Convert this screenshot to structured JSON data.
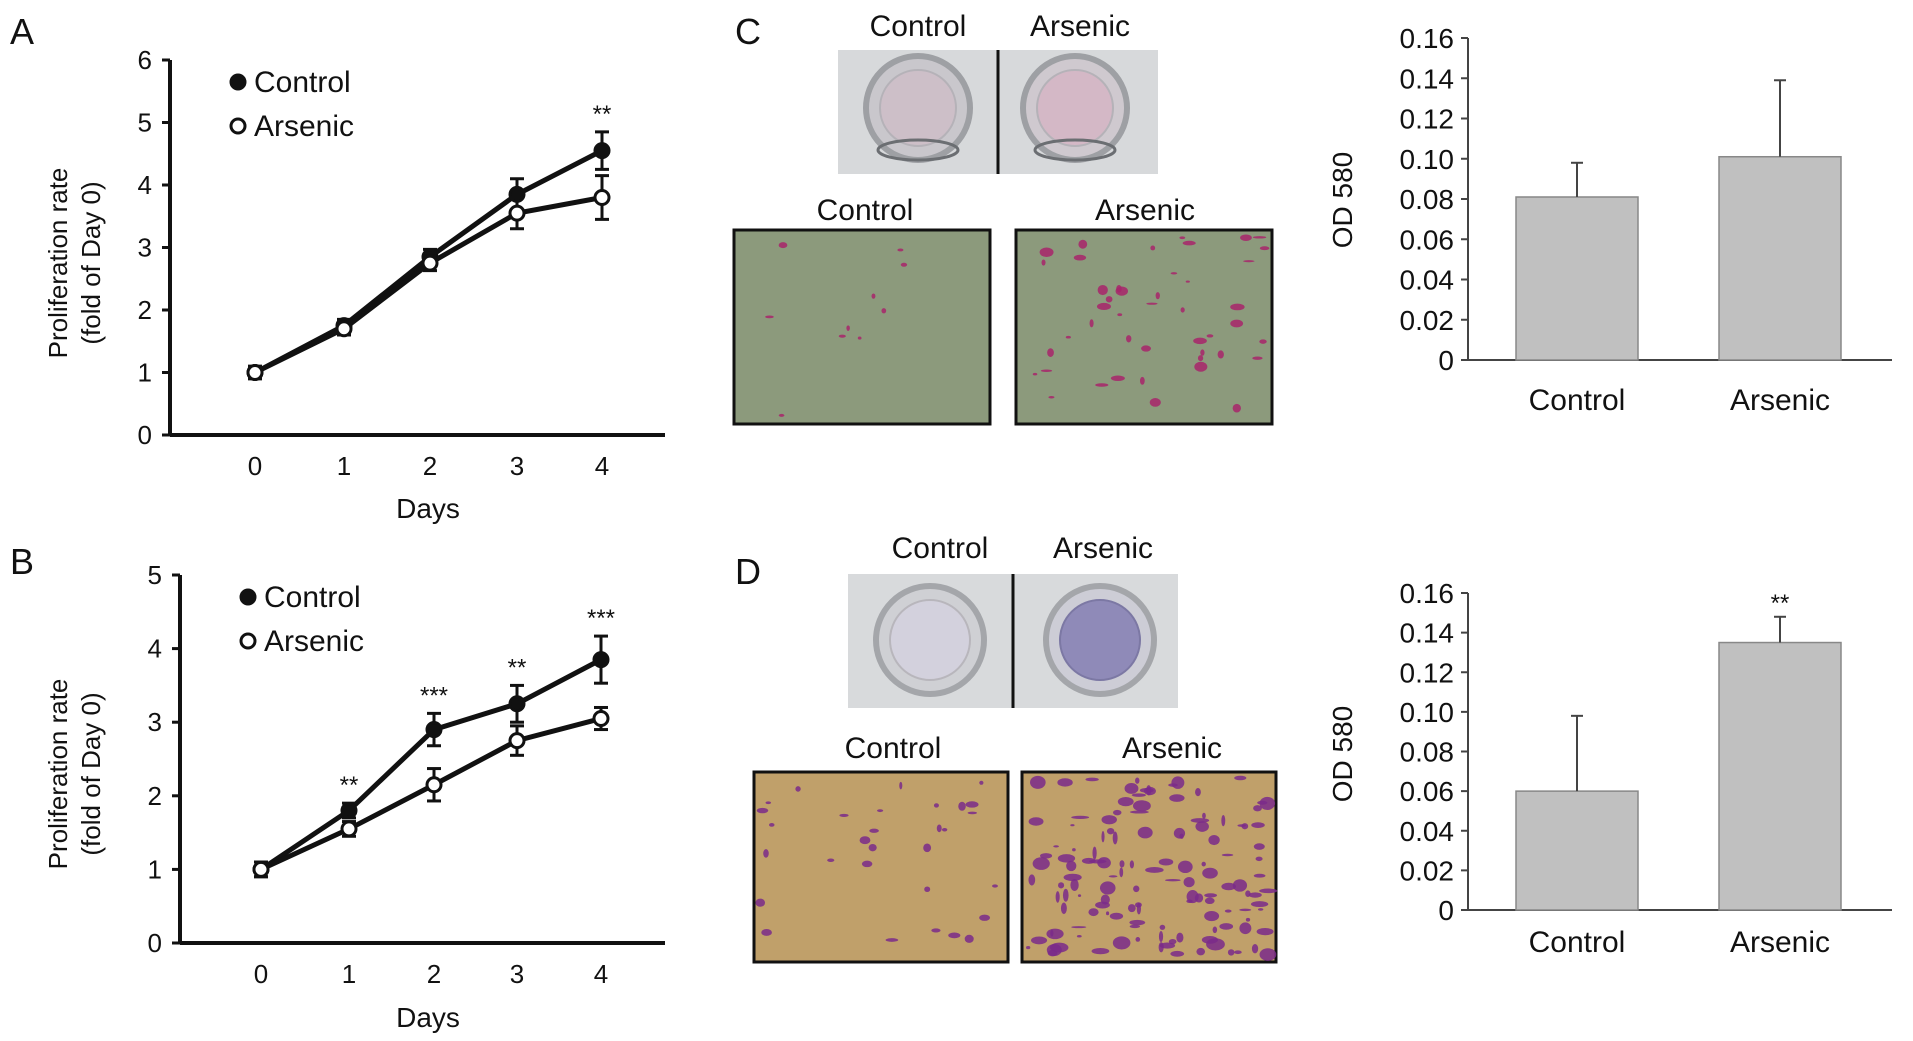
{
  "panel_labels": {
    "a": "A",
    "b": "B",
    "c": "C",
    "d": "D"
  },
  "chart_data": [
    {
      "id": "A",
      "type": "line",
      "xlabel": "Days",
      "ylabel_line1": "Proliferation rate",
      "ylabel_line2": "(fold of Day 0)",
      "x": [
        0,
        1,
        2,
        3,
        4
      ],
      "ylim": [
        0,
        6
      ],
      "yticks": [
        0,
        1,
        2,
        3,
        4,
        5,
        6
      ],
      "series": [
        {
          "name": "Control",
          "marker": "filled",
          "values": [
            1.0,
            1.75,
            2.85,
            3.85,
            4.55
          ],
          "errors": [
            0.1,
            0.1,
            0.12,
            0.25,
            0.3
          ]
        },
        {
          "name": "Arsenic",
          "marker": "open",
          "values": [
            1.0,
            1.7,
            2.75,
            3.55,
            3.8
          ],
          "errors": [
            0.1,
            0.1,
            0.12,
            0.25,
            0.35
          ]
        }
      ],
      "annotations": [
        {
          "x": 4,
          "text": "**"
        }
      ]
    },
    {
      "id": "B",
      "type": "line",
      "xlabel": "Days",
      "ylabel_line1": "Proliferation rate",
      "ylabel_line2": "(fold of Day 0)",
      "x": [
        0,
        1,
        2,
        3,
        4
      ],
      "ylim": [
        0,
        5
      ],
      "yticks": [
        0,
        1,
        2,
        3,
        4,
        5
      ],
      "series": [
        {
          "name": "Control",
          "marker": "filled",
          "values": [
            1.0,
            1.8,
            2.9,
            3.25,
            3.85
          ],
          "errors": [
            0.1,
            0.1,
            0.22,
            0.25,
            0.32
          ]
        },
        {
          "name": "Arsenic",
          "marker": "open",
          "values": [
            1.0,
            1.55,
            2.15,
            2.75,
            3.05
          ],
          "errors": [
            0.1,
            0.1,
            0.22,
            0.2,
            0.15
          ]
        }
      ],
      "annotations": [
        {
          "x": 1,
          "text": "**"
        },
        {
          "x": 2,
          "text": "***"
        },
        {
          "x": 3,
          "text": "**"
        },
        {
          "x": 4,
          "text": "***"
        }
      ]
    },
    {
      "id": "C",
      "type": "bar",
      "ylabel": "OD 580",
      "categories": [
        "Control",
        "Arsenic"
      ],
      "values": [
        0.081,
        0.101
      ],
      "errors": [
        0.017,
        0.038
      ],
      "ylim": [
        0,
        0.16
      ],
      "yticks": [
        "0",
        "0.02",
        "0.04",
        "0.06",
        "0.08",
        "0.10",
        "0.12",
        "0.14",
        "0.16"
      ],
      "annotations": [],
      "bar_color": "#c0c0c0"
    },
    {
      "id": "D",
      "type": "bar",
      "ylabel": "OD 580",
      "categories": [
        "Control",
        "Arsenic"
      ],
      "values": [
        0.06,
        0.135
      ],
      "errors": [
        0.038,
        0.013
      ],
      "ylim": [
        0,
        0.16
      ],
      "yticks": [
        "0",
        "0.02",
        "0.04",
        "0.06",
        "0.08",
        "0.10",
        "0.12",
        "0.14",
        "0.16"
      ],
      "annotations": [
        {
          "category": "Arsenic",
          "text": "**"
        }
      ],
      "bar_color": "#c0c0c0"
    }
  ],
  "photos": {
    "c": {
      "well_labels": [
        "Control",
        "Arsenic"
      ],
      "micro_labels": [
        "Control",
        "Arsenic"
      ],
      "micro_bg": "#8c9a7c",
      "stain_color": "#a8246b"
    },
    "d": {
      "well_labels": [
        "Control",
        "Arsenic"
      ],
      "micro_labels": [
        "Control",
        "Arsenic"
      ],
      "micro_bg": "#c0a06a",
      "stain_color": "#7a2a8a"
    }
  }
}
